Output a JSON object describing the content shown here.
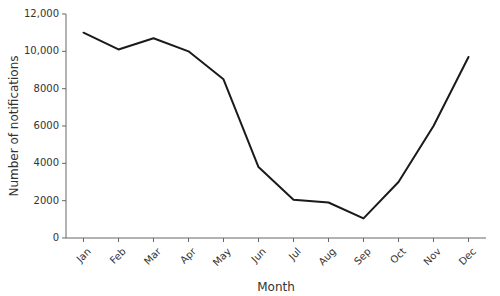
{
  "chart_data": {
    "type": "line",
    "categories": [
      "Jan",
      "Feb",
      "Mar",
      "Apr",
      "May",
      "Jun",
      "Jul",
      "Aug",
      "Sep",
      "Oct",
      "Nov",
      "Dec"
    ],
    "values": [
      11000,
      10100,
      10700,
      10000,
      8500,
      3800,
      2050,
      1900,
      1050,
      3000,
      6000,
      9700
    ],
    "color": "#1a1a1a",
    "xlabel": "Month",
    "ylabel": "Number of notifications",
    "ylim": [
      0,
      12000
    ],
    "yticks": [
      0,
      2000,
      4000,
      6000,
      8000,
      {
        "value": 10000,
        "label": "10,000"
      },
      {
        "value": 12000,
        "label": "12,000"
      }
    ],
    "grid": false
  }
}
